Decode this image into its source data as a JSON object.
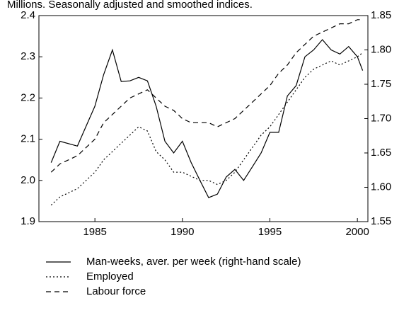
{
  "chart_data": {
    "type": "line",
    "subtitle": "Millions. Seasonally adjusted and smoothed indices.",
    "x": [
      1982.5,
      1983,
      1984,
      1985,
      1985.5,
      1986,
      1986.5,
      1987,
      1987.5,
      1988,
      1988.5,
      1989,
      1989.5,
      1990,
      1990.5,
      1991,
      1991.5,
      1992,
      1992.5,
      1993,
      1993.5,
      1994,
      1994.5,
      1995,
      1995.5,
      1996,
      1996.5,
      1997,
      1997.5,
      1998,
      1998.5,
      1999,
      1999.5,
      2000,
      2000.3
    ],
    "xlim": [
      1981.8,
      2000.6
    ],
    "xticks": [
      1985,
      1990,
      1995,
      2000
    ],
    "ylim": [
      1.9,
      2.4
    ],
    "yticks": [
      1.9,
      {
        "value": 2.0,
        "label": "2.0"
      },
      2.1,
      2.2,
      2.3,
      2.4
    ],
    "y2lim": [
      1.55,
      1.85
    ],
    "y2ticks": [
      1.55,
      {
        "value": 1.6,
        "label": "1.60"
      },
      1.65,
      {
        "value": 1.7,
        "label": "1.70"
      },
      1.75,
      {
        "value": 1.8,
        "label": "1.80"
      },
      1.85
    ],
    "series": [
      {
        "name": "Man-weeks, aver. per week (right-hand scale)",
        "color": "#000000",
        "dash": "solid",
        "axis": "y2",
        "values": [
          1.636,
          1.667,
          1.66,
          1.718,
          1.764,
          1.8,
          1.754,
          1.755,
          1.76,
          1.755,
          1.718,
          1.667,
          1.65,
          1.667,
          1.636,
          1.61,
          1.585,
          1.59,
          1.615,
          1.626,
          1.61,
          1.63,
          1.65,
          1.68,
          1.68,
          1.733,
          1.748,
          1.79,
          1.8,
          1.815,
          1.8,
          1.794,
          1.805,
          1.79,
          1.77
        ]
      },
      {
        "name": "Employed",
        "color": "#000000",
        "dash": "dotted",
        "values": [
          1.94,
          1.96,
          1.98,
          2.02,
          2.05,
          2.07,
          2.09,
          2.11,
          2.13,
          2.12,
          2.07,
          2.05,
          2.02,
          2.02,
          2.01,
          2.0,
          2.0,
          1.99,
          2.0,
          2.02,
          2.05,
          2.08,
          2.11,
          2.13,
          2.16,
          2.19,
          2.22,
          2.25,
          2.27,
          2.28,
          2.29,
          2.28,
          2.29,
          2.3,
          2.31
        ]
      },
      {
        "name": "Labour force",
        "color": "#000000",
        "dash": "dashed",
        "values": [
          2.02,
          2.04,
          2.06,
          2.1,
          2.14,
          2.16,
          2.18,
          2.2,
          2.21,
          2.22,
          2.2,
          2.18,
          2.17,
          2.15,
          2.14,
          2.14,
          2.14,
          2.13,
          2.14,
          2.15,
          2.17,
          2.19,
          2.21,
          2.23,
          2.26,
          2.28,
          2.31,
          2.33,
          2.35,
          2.36,
          2.37,
          2.38,
          2.38,
          2.39,
          2.39
        ]
      }
    ]
  }
}
